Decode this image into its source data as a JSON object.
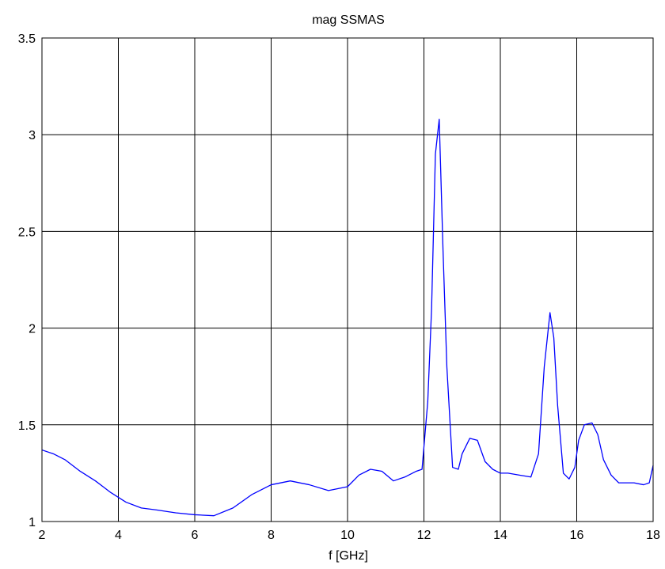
{
  "chart_data": {
    "type": "line",
    "title": "mag SSMAS",
    "xlabel": "f [GHz]",
    "ylabel": "",
    "xlim": [
      2,
      18
    ],
    "ylim": [
      1,
      3.5
    ],
    "xticks": [
      2,
      4,
      6,
      8,
      10,
      12,
      14,
      16,
      18
    ],
    "yticks": [
      1,
      1.5,
      2,
      2.5,
      3,
      3.5
    ],
    "xtick_labels": [
      "2",
      "4",
      "6",
      "8",
      "10",
      "12",
      "14",
      "16",
      "18"
    ],
    "ytick_labels": [
      "1",
      "1.5",
      "2",
      "2.5",
      "3",
      "3.5"
    ],
    "grid": true,
    "line_color": "#0000ff",
    "series": [
      {
        "x": [
          2.0,
          2.3,
          2.6,
          3.0,
          3.4,
          3.8,
          4.2,
          4.6,
          5.0,
          5.5,
          6.0,
          6.5,
          7.0,
          7.5,
          8.0,
          8.5,
          9.0,
          9.5,
          10.0,
          10.3,
          10.6,
          10.9,
          11.2,
          11.5,
          11.8,
          11.95,
          12.1,
          12.2,
          12.3,
          12.4,
          12.5,
          12.6,
          12.75,
          12.9,
          13.0,
          13.2,
          13.4,
          13.6,
          13.8,
          14.0,
          14.2,
          14.5,
          14.8,
          15.0,
          15.15,
          15.3,
          15.4,
          15.5,
          15.65,
          15.8,
          15.95,
          16.05,
          16.2,
          16.4,
          16.55,
          16.7,
          16.9,
          17.1,
          17.3,
          17.5,
          17.75,
          17.9,
          18.0
        ],
        "y": [
          1.37,
          1.35,
          1.32,
          1.26,
          1.21,
          1.15,
          1.1,
          1.07,
          1.06,
          1.045,
          1.035,
          1.03,
          1.07,
          1.14,
          1.19,
          1.21,
          1.19,
          1.16,
          1.18,
          1.24,
          1.27,
          1.26,
          1.21,
          1.23,
          1.26,
          1.27,
          1.62,
          2.1,
          2.9,
          3.08,
          2.4,
          1.8,
          1.28,
          1.27,
          1.35,
          1.43,
          1.42,
          1.31,
          1.27,
          1.25,
          1.25,
          1.24,
          1.23,
          1.35,
          1.8,
          2.08,
          1.95,
          1.6,
          1.25,
          1.22,
          1.28,
          1.42,
          1.5,
          1.51,
          1.45,
          1.32,
          1.24,
          1.2,
          1.2,
          1.2,
          1.19,
          1.2,
          1.29
        ]
      }
    ]
  }
}
